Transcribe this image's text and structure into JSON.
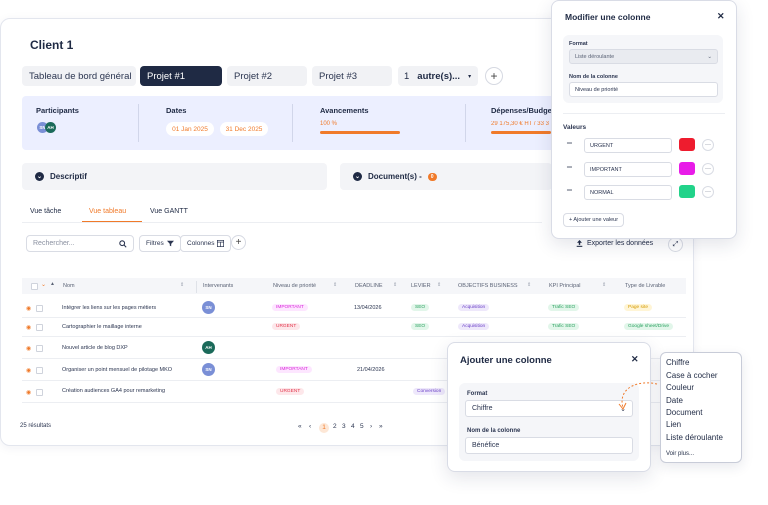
{
  "page": {
    "client_title": "Client 1"
  },
  "tabs": {
    "items": [
      "Tableau de bord général",
      "Projet #1",
      "Projet #2",
      "Projet #3"
    ],
    "more_count": "1",
    "more_label": "autre(s)...",
    "add": "+"
  },
  "info": {
    "participants_label": "Participants",
    "participants": [
      {
        "initials": "SN",
        "color": "#7a8fd6"
      },
      {
        "initials": "AH",
        "color": "#1b6a5a"
      }
    ],
    "dates_label": "Dates",
    "date_start": "01 Jan 2025",
    "date_end": "31 Dec 2025",
    "progress_label": "Avancements",
    "progress_value": "100 %",
    "progress_fraction": 1.0,
    "expenses_label": "Dépenses/Budget",
    "expenses_value": "29 175,30 € HT / 33 3"
  },
  "sections": {
    "descriptif": "Descriptif",
    "documents": "Document(s) -",
    "documents_count": "0"
  },
  "views": {
    "tache": "Vue tâche",
    "tableau": "Vue tableau",
    "gantt": "Vue GANTT"
  },
  "toolbar": {
    "search_placeholder": "Rechercher...",
    "filters": "Filtres",
    "columns": "Colonnes",
    "add": "+",
    "export": "Exporter les données"
  },
  "table": {
    "headers": [
      "Nom",
      "Intervenants",
      "Niveau de priorité",
      "DEADLINE",
      "LEVIER",
      "OBJECTIFS BUSINESS",
      "KPI Principal",
      "Type de Livrable"
    ],
    "rows": [
      {
        "name": "Intégrer les liens sur les pages métiers",
        "avatar": "SN",
        "avatar_color": "#7a8fd6",
        "priority": "IMPORTANT",
        "priority_class": "tag-pink",
        "deadline": "13/04/2026",
        "lever": "SEO",
        "objective": "Acquisition",
        "kpi": "Trafic SEO",
        "deliverable": "Page site",
        "deliverable_class": "tag-yellow"
      },
      {
        "name": "Cartographier le maillage interne",
        "avatar": "",
        "avatar_color": "",
        "priority": "URGENT",
        "priority_class": "tag-red",
        "deadline": "",
        "lever": "SEO",
        "objective": "Acquisition",
        "kpi": "Trafic SEO",
        "deliverable": "Google sheet/Drive",
        "deliverable_class": "tag-green"
      },
      {
        "name": "Nouvel article de blog DXP",
        "avatar": "AH",
        "avatar_color": "#1b6a5a",
        "priority": "",
        "priority_class": "",
        "deadline": "",
        "lever": "",
        "objective": "",
        "kpi": "",
        "deliverable": "",
        "deliverable_class": ""
      },
      {
        "name": "Organiser un point mensuel de pilotage MKO",
        "avatar": "SN",
        "avatar_color": "#7a8fd6",
        "priority": "IMPORTANT",
        "priority_class": "tag-pink",
        "deadline": "21/04/2026",
        "lever": "",
        "objective": "",
        "kpi": "",
        "deliverable": "",
        "deliverable_class": ""
      },
      {
        "name": "Création audiences GA4 pour remarketing",
        "avatar": "",
        "avatar_color": "",
        "priority": "URGENT",
        "priority_class": "tag-red",
        "deadline": "",
        "lever": "Conversion",
        "objective": "",
        "kpi": "",
        "deliverable": "",
        "deliverable_class": ""
      }
    ],
    "results": "25 résultats",
    "pages": [
      "1",
      "2",
      "3",
      "4",
      "5"
    ],
    "current_page": "1"
  },
  "modify_modal": {
    "title": "Modifier une colonne",
    "format_label": "Format",
    "format_value": "Liste déroulante",
    "name_label": "Nom de la colonne",
    "name_value": "Niveau de priorité",
    "values_label": "Valeurs",
    "values": [
      {
        "label": "URGENT",
        "color": "#ee1c2e"
      },
      {
        "label": "IMPORTANT",
        "color": "#e81ce8"
      },
      {
        "label": "NORMAL",
        "color": "#22d38a"
      }
    ],
    "add_value": "+ Ajouter une valeur"
  },
  "add_modal": {
    "title": "Ajouter une colonne",
    "format_label": "Format",
    "format_value": "Chiffre",
    "name_label": "Nom de la colonne",
    "name_value": "Bénéfice"
  },
  "format_dropdown": {
    "options": [
      "Chiffre",
      "Case à cocher",
      "Couleur",
      "Date",
      "Document",
      "Lien",
      "Liste déroulante"
    ],
    "more": "Voir plus..."
  }
}
